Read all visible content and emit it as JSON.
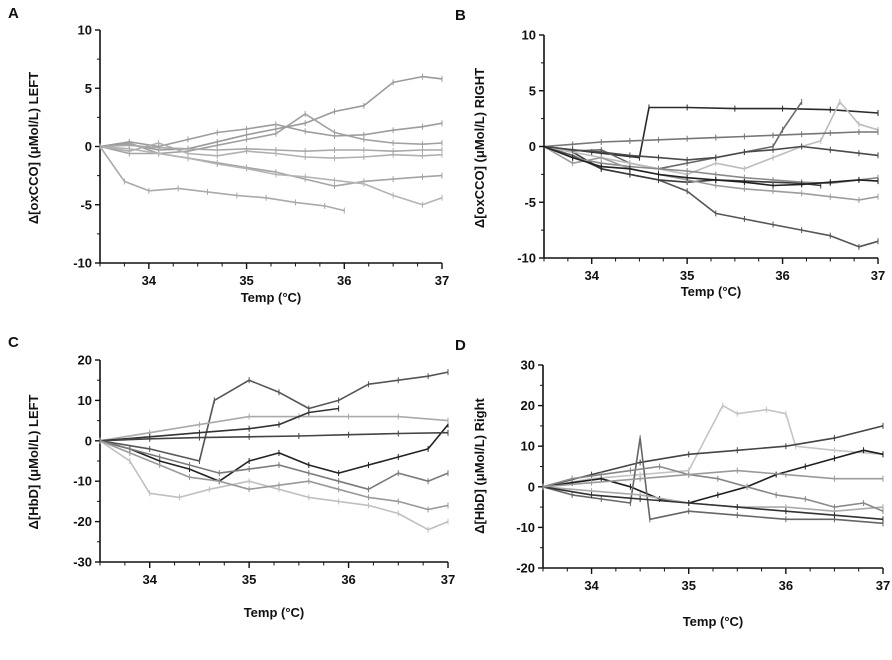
{
  "chart_data": [
    {
      "panel_letter": "A",
      "type": "line",
      "xlabel": "Temp (°C)",
      "ylabel": "Δ[oxCCO] (μMol/L) LEFT",
      "xlim": [
        33.5,
        37.0
      ],
      "ylim": [
        -10,
        10
      ],
      "xticks": [
        "34",
        "35",
        "36",
        "37"
      ],
      "yticks": [
        "10",
        "5",
        "0",
        "-5",
        "-10"
      ],
      "grid": false,
      "legend": "none",
      "series": [
        {
          "color": "#9a9a9a",
          "x": [
            33.5,
            33.8,
            34.1,
            34.4,
            34.7,
            35.0,
            35.3,
            35.6,
            35.9,
            36.2,
            36.5,
            36.8,
            37.0
          ],
          "y": [
            0,
            0.2,
            -0.3,
            -0.2,
            0.4,
            1.0,
            1.5,
            2.0,
            3.0,
            3.5,
            5.5,
            6.0,
            5.8
          ]
        },
        {
          "color": "#a4a4a4",
          "x": [
            33.5,
            33.8,
            34.1,
            34.4,
            34.7,
            35.0,
            35.3,
            35.6,
            35.9,
            36.2,
            36.5,
            36.8,
            37.0
          ],
          "y": [
            0,
            -0.6,
            -0.6,
            -1.0,
            -1.4,
            -1.8,
            -2.2,
            -2.8,
            -3.4,
            -3.0,
            -2.8,
            -2.6,
            -2.5
          ]
        },
        {
          "color": "#aaaaaa",
          "x": [
            33.5,
            33.75,
            34.0,
            34.3,
            34.6,
            34.9,
            35.2,
            35.5,
            35.8,
            36.0
          ],
          "y": [
            0,
            -3.0,
            -3.8,
            -3.6,
            -3.9,
            -4.2,
            -4.4,
            -4.8,
            -5.1,
            -5.5
          ]
        },
        {
          "color": "#a0a0a0",
          "x": [
            33.5,
            33.8,
            34.1,
            34.4,
            34.7,
            35.0,
            35.3,
            35.6,
            35.9,
            36.2,
            36.5,
            36.8,
            37.0
          ],
          "y": [
            0,
            0.3,
            -0.6,
            -0.4,
            0.1,
            0.6,
            1.1,
            2.8,
            1.2,
            0.6,
            0.3,
            0.2,
            0.3
          ]
        },
        {
          "color": "#b4b4b4",
          "x": [
            33.5,
            33.8,
            34.1,
            34.4,
            34.7,
            35.0,
            35.3,
            35.6,
            35.9,
            36.2,
            36.5,
            36.8,
            37.0
          ],
          "y": [
            0,
            -0.2,
            -0.6,
            -1.0,
            -1.5,
            -1.9,
            -2.4,
            -2.6,
            -2.9,
            -3.2,
            -4.2,
            -5.0,
            -4.4
          ]
        },
        {
          "color": "#9c9c9c",
          "x": [
            33.5,
            33.8,
            34.1,
            34.4,
            34.7,
            35.0,
            35.3,
            35.6,
            35.9,
            36.2,
            36.5,
            36.8,
            37.0
          ],
          "y": [
            0,
            0.4,
            0.0,
            0.6,
            1.2,
            1.5,
            1.9,
            1.3,
            0.9,
            1.0,
            1.4,
            1.7,
            2.0
          ]
        },
        {
          "color": "#b0b0b0",
          "x": [
            33.5,
            33.8,
            34.1,
            34.4,
            34.7,
            35.0,
            35.3,
            35.6,
            35.9,
            36.2,
            36.5,
            36.8,
            37.0
          ],
          "y": [
            0,
            -0.4,
            0.3,
            -0.6,
            -0.8,
            -0.4,
            -0.6,
            -0.9,
            -1.0,
            -0.9,
            -0.7,
            -0.8,
            -0.7
          ]
        },
        {
          "color": "#a8a8a8",
          "x": [
            33.5,
            33.8,
            34.1,
            34.4,
            34.7,
            35.0,
            35.3,
            35.6,
            35.9,
            36.2,
            36.5,
            36.8,
            37.0
          ],
          "y": [
            0,
            0.1,
            -0.1,
            -0.2,
            -0.3,
            -0.2,
            -0.3,
            -0.4,
            -0.3,
            -0.3,
            -0.4,
            -0.3,
            -0.3
          ]
        }
      ]
    },
    {
      "panel_letter": "B",
      "type": "line",
      "xlabel": "Temp (°C)",
      "ylabel": "Δ[oxCCO] (μMol/L) RIGHT",
      "xlim": [
        33.5,
        37.0
      ],
      "ylim": [
        -10,
        10
      ],
      "xticks": [
        "34",
        "35",
        "36",
        "37"
      ],
      "yticks": [
        "10",
        "5",
        "0",
        "-5",
        "-10"
      ],
      "grid": false,
      "legend": "none",
      "series": [
        {
          "color": "#2a2a2a",
          "x": [
            33.5,
            34.0,
            34.5,
            34.6,
            35.0,
            35.5,
            36.0,
            36.5,
            37.0
          ],
          "y": [
            0,
            -0.5,
            -1.0,
            3.5,
            3.5,
            3.4,
            3.4,
            3.3,
            3.0
          ]
        },
        {
          "color": "#555555",
          "x": [
            33.5,
            33.8,
            34.1,
            34.4,
            34.7,
            35.0,
            35.3,
            35.6,
            35.9,
            36.2,
            36.5,
            36.8,
            37.0
          ],
          "y": [
            0,
            -0.8,
            -2.0,
            -2.5,
            -3.0,
            -4.0,
            -6.0,
            -6.5,
            -7.0,
            -7.5,
            -8.0,
            -9.0,
            -8.5
          ]
        },
        {
          "color": "#3a3a3a",
          "x": [
            33.5,
            33.8,
            34.1,
            34.4,
            34.7,
            35.0,
            35.3,
            35.6,
            35.9,
            36.2,
            36.4
          ],
          "y": [
            0,
            -0.5,
            -2.0,
            -2.5,
            -3.0,
            -3.2,
            -3.0,
            -3.1,
            -3.2,
            -3.3,
            -3.5
          ]
        },
        {
          "color": "#6a6a6a",
          "x": [
            33.5,
            33.8,
            34.1,
            34.4,
            34.7,
            35.0,
            35.3,
            35.6,
            35.9,
            36.0,
            36.2
          ],
          "y": [
            0,
            -0.4,
            -0.3,
            -1.5,
            -2.0,
            -1.5,
            -1.0,
            -0.5,
            0.0,
            1.5,
            4.0
          ]
        },
        {
          "color": "#bdbdbd",
          "x": [
            33.5,
            33.8,
            34.1,
            34.4,
            34.7,
            35.0,
            35.3,
            35.6,
            35.9,
            36.2,
            36.4,
            36.6,
            36.8,
            37.0
          ],
          "y": [
            0,
            -0.5,
            -1.0,
            -1.5,
            -2.0,
            -2.5,
            -1.5,
            -2.0,
            -1.0,
            0.0,
            0.5,
            4.0,
            2.0,
            1.5
          ]
        },
        {
          "color": "#777777",
          "x": [
            33.5,
            33.8,
            34.1,
            34.4,
            34.7,
            35.0,
            35.3,
            35.6,
            35.9,
            36.2,
            36.5,
            36.8,
            37.0
          ],
          "y": [
            0,
            0.2,
            0.4,
            0.5,
            0.6,
            0.7,
            0.8,
            0.9,
            1.0,
            1.1,
            1.2,
            1.3,
            1.3
          ]
        },
        {
          "color": "#4a4a4a",
          "x": [
            33.5,
            33.8,
            34.1,
            34.4,
            34.7,
            35.0,
            35.3,
            35.6,
            35.9,
            36.2,
            36.5,
            36.8,
            37.0
          ],
          "y": [
            0,
            -0.3,
            -0.5,
            -0.8,
            -1.0,
            -1.2,
            -1.0,
            -0.5,
            -0.3,
            0.0,
            -0.3,
            -0.6,
            -0.8
          ]
        },
        {
          "color": "#8a8a8a",
          "x": [
            33.5,
            33.8,
            34.1,
            34.4,
            34.7,
            35.0,
            35.3,
            35.6,
            35.9,
            36.2,
            36.5,
            36.8,
            37.0
          ],
          "y": [
            0,
            -1.0,
            -1.5,
            -1.8,
            -2.0,
            -2.2,
            -2.5,
            -2.8,
            -3.0,
            -3.2,
            -3.3,
            -3.0,
            -2.8
          ]
        },
        {
          "color": "#9c9c9c",
          "x": [
            33.5,
            33.8,
            34.1,
            34.4,
            34.7,
            35.0,
            35.3,
            35.6,
            35.9,
            36.2,
            36.5,
            36.8,
            37.0
          ],
          "y": [
            0,
            -1.5,
            -1.0,
            -2.0,
            -2.5,
            -3.0,
            -3.5,
            -3.8,
            -4.0,
            -4.2,
            -4.5,
            -4.8,
            -4.5
          ]
        },
        {
          "color": "#202020",
          "x": [
            33.5,
            33.8,
            34.1,
            34.4,
            34.7,
            35.0,
            35.3,
            35.6,
            35.9,
            36.2,
            36.5,
            36.8,
            37.0
          ],
          "y": [
            0,
            -1.0,
            -1.8,
            -2.0,
            -2.5,
            -2.8,
            -3.0,
            -3.2,
            -3.5,
            -3.4,
            -3.2,
            -3.0,
            -3.1
          ]
        }
      ]
    },
    {
      "panel_letter": "C",
      "type": "line",
      "xlabel": "Temp (°C)",
      "ylabel": "Δ[HbD] (μMol/L) LEFT",
      "xlim": [
        33.5,
        37.0
      ],
      "ylim": [
        -30,
        20
      ],
      "xticks": [
        "34",
        "35",
        "36",
        "37"
      ],
      "yticks": [
        "20",
        "10",
        "0",
        "-10",
        "-20",
        "-30"
      ],
      "grid": false,
      "legend": "none",
      "series": [
        {
          "color": "#555555",
          "x": [
            33.5,
            34.0,
            34.5,
            34.65,
            35.0,
            35.3,
            35.6,
            35.9,
            36.2,
            36.5,
            36.8,
            37.0
          ],
          "y": [
            0,
            -2.0,
            -5.0,
            10.0,
            15.0,
            12.0,
            8.0,
            10.0,
            14.0,
            15.0,
            16.0,
            17.0
          ]
        },
        {
          "color": "#c0c0c0",
          "x": [
            33.5,
            33.8,
            34.0,
            34.3,
            34.6,
            35.0,
            35.3,
            35.6,
            35.9,
            36.2,
            36.5,
            36.8,
            37.0
          ],
          "y": [
            0,
            -5.0,
            -13.0,
            -14.0,
            -12.0,
            -10.0,
            -12.0,
            -14.0,
            -15.0,
            -16.0,
            -18.0,
            -22.0,
            -20.0
          ]
        },
        {
          "color": "#222222",
          "x": [
            33.5,
            33.8,
            34.1,
            34.4,
            34.7,
            35.0,
            35.3,
            35.6,
            35.9,
            36.2,
            36.5,
            36.8,
            37.0
          ],
          "y": [
            0,
            -2.0,
            -5.0,
            -7.0,
            -10.0,
            -5.0,
            -3.0,
            -6.0,
            -8.0,
            -6.0,
            -4.0,
            -2.0,
            4.0
          ]
        },
        {
          "color": "#aaaaaa",
          "x": [
            33.5,
            34.0,
            34.5,
            35.0,
            35.5,
            36.0,
            36.5,
            37.0
          ],
          "y": [
            0,
            2.0,
            4.0,
            6.0,
            6.0,
            6.0,
            6.0,
            5.0
          ]
        },
        {
          "color": "#333333",
          "x": [
            33.5,
            34.0,
            34.5,
            35.0,
            35.3,
            35.6,
            35.9
          ],
          "y": [
            0,
            1.0,
            2.0,
            3.0,
            4.0,
            7.0,
            8.0
          ]
        },
        {
          "color": "#7a7a7a",
          "x": [
            33.5,
            33.8,
            34.1,
            34.4,
            34.7,
            35.0,
            35.3,
            35.6,
            35.9,
            36.2,
            36.5,
            36.8,
            37.0
          ],
          "y": [
            0,
            -2.0,
            -4.0,
            -6.0,
            -8.0,
            -7.0,
            -6.0,
            -8.0,
            -10.0,
            -12.0,
            -8.0,
            -10.0,
            -8.0
          ]
        },
        {
          "color": "#444444",
          "x": [
            33.5,
            34.0,
            34.5,
            35.0,
            35.5,
            36.0,
            36.5,
            37.0
          ],
          "y": [
            0,
            0.5,
            0.8,
            1.0,
            1.2,
            1.5,
            1.8,
            2.0
          ]
        },
        {
          "color": "#999999",
          "x": [
            33.5,
            33.8,
            34.1,
            34.4,
            34.7,
            35.0,
            35.3,
            35.6,
            35.9,
            36.2,
            36.5,
            36.8,
            37.0
          ],
          "y": [
            0,
            -3.0,
            -6.0,
            -9.0,
            -10.0,
            -12.0,
            -11.0,
            -10.0,
            -12.0,
            -14.0,
            -15.0,
            -17.0,
            -16.0
          ]
        }
      ]
    },
    {
      "panel_letter": "D",
      "type": "line",
      "xlabel": "Temp (°C)",
      "ylabel": "Δ[HbD] (μMol/L) Right",
      "xlim": [
        33.5,
        37.0
      ],
      "ylim": [
        -20,
        30
      ],
      "xticks": [
        "34",
        "35",
        "36",
        "37"
      ],
      "yticks": [
        "30",
        "20",
        "10",
        "0",
        "-10",
        "-20"
      ],
      "grid": false,
      "legend": "none",
      "series": [
        {
          "color": "#c4c4c4",
          "x": [
            33.5,
            34.0,
            34.5,
            35.0,
            35.35,
            35.5,
            35.8,
            36.0,
            36.1,
            36.5,
            37.0
          ],
          "y": [
            0,
            2.0,
            3.0,
            4.0,
            20.0,
            18.0,
            19.0,
            18.0,
            10.0,
            9.0,
            8.0
          ]
        },
        {
          "color": "#444444",
          "x": [
            33.5,
            34.0,
            34.5,
            35.0,
            35.5,
            36.0,
            36.5,
            37.0
          ],
          "y": [
            0,
            3.0,
            6.0,
            8.0,
            9.0,
            10.0,
            12.0,
            15.0
          ]
        },
        {
          "color": "#1e1e1e",
          "x": [
            33.5,
            33.8,
            34.1,
            34.4,
            34.7,
            35.0,
            35.3,
            35.6,
            35.9,
            36.2,
            36.5,
            36.8,
            37.0
          ],
          "y": [
            0,
            1.0,
            2.0,
            0.0,
            -3.0,
            -4.0,
            -2.0,
            0.0,
            3.0,
            5.0,
            7.0,
            9.0,
            8.0
          ]
        },
        {
          "color": "#666666",
          "x": [
            33.5,
            33.8,
            34.1,
            34.4,
            34.5,
            34.6,
            35.0,
            35.5,
            36.0,
            36.5,
            37.0
          ],
          "y": [
            0,
            -2.0,
            -3.0,
            -4.0,
            12.0,
            -8.0,
            -6.0,
            -7.0,
            -8.0,
            -8.0,
            -9.0
          ]
        },
        {
          "color": "#aaaaaa",
          "x": [
            33.5,
            34.0,
            34.5,
            35.0,
            35.5,
            36.0,
            36.5,
            37.0
          ],
          "y": [
            0,
            -1.0,
            -2.0,
            -4.0,
            -5.0,
            -5.0,
            -6.0,
            -5.0
          ]
        },
        {
          "color": "#888888",
          "x": [
            33.5,
            33.8,
            34.1,
            34.4,
            34.7,
            35.0,
            35.3,
            35.6,
            35.9,
            36.2,
            36.5,
            36.8,
            37.0
          ],
          "y": [
            0,
            2.0,
            3.0,
            4.0,
            5.0,
            3.0,
            2.0,
            0.0,
            -2.0,
            -3.0,
            -5.0,
            -4.0,
            -6.0
          ]
        },
        {
          "color": "#333333",
          "x": [
            33.5,
            34.0,
            34.5,
            35.0,
            35.5,
            36.0,
            36.5,
            37.0
          ],
          "y": [
            0,
            -2.0,
            -3.0,
            -4.0,
            -5.0,
            -6.0,
            -7.0,
            -8.0
          ]
        },
        {
          "color": "#9a9a9a",
          "x": [
            33.5,
            34.0,
            34.5,
            35.0,
            35.5,
            36.0,
            36.5,
            37.0
          ],
          "y": [
            0,
            1.0,
            2.0,
            3.0,
            4.0,
            3.0,
            2.0,
            2.0
          ]
        }
      ]
    }
  ]
}
